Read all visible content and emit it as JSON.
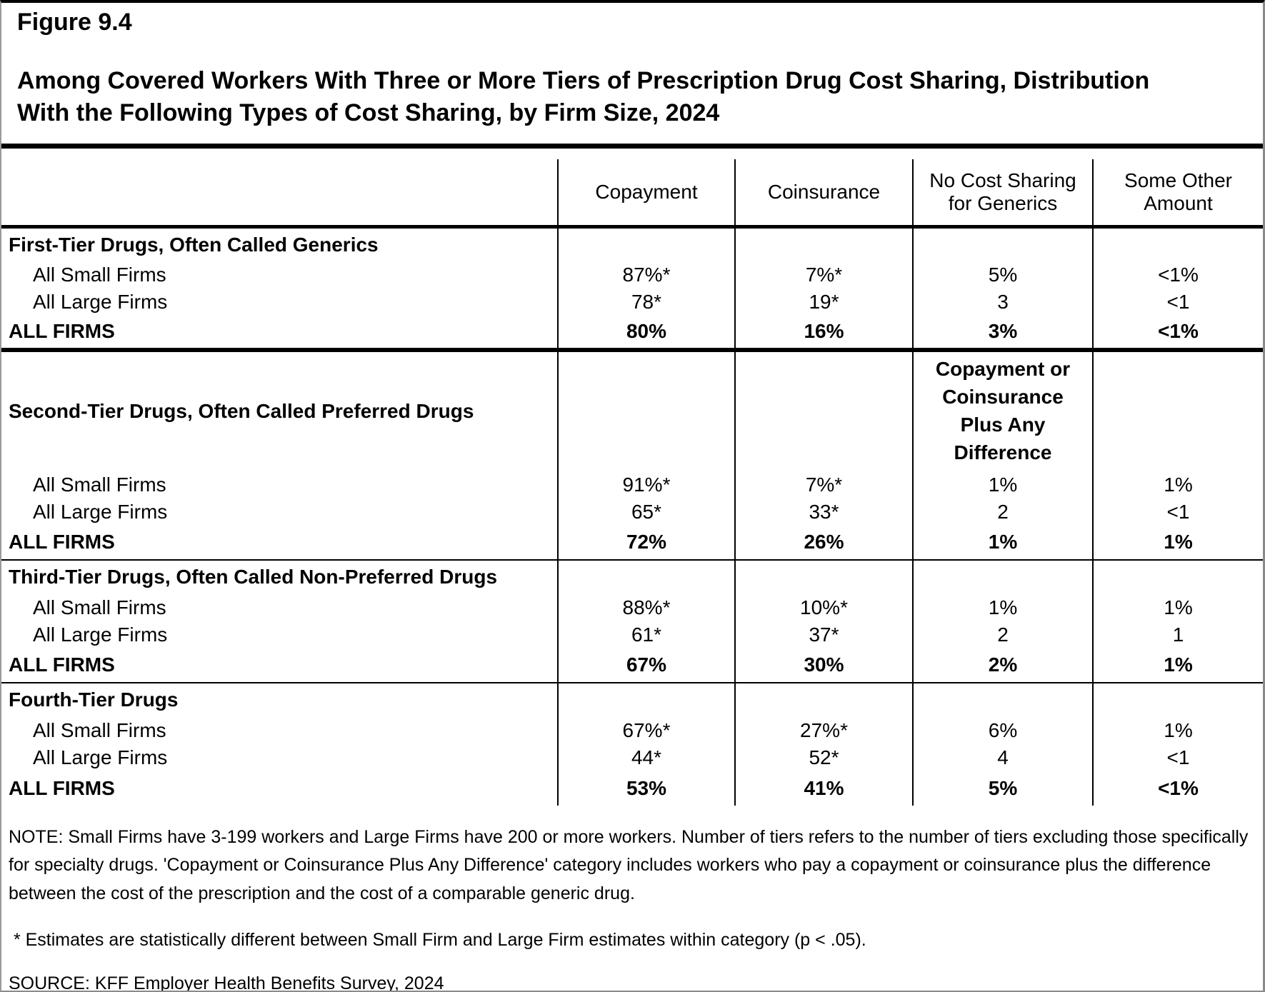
{
  "figure": {
    "label": "Figure 9.4",
    "title": "Among Covered Workers With Three or More Tiers of Prescription Drug Cost Sharing, Distribution\nWith the Following Types of Cost Sharing, by Firm Size, 2024"
  },
  "table": {
    "col_headers": {
      "label": "",
      "copayment": "Copayment",
      "coinsurance": "Coinsurance",
      "no_cost_sharing": "No Cost Sharing\nfor Generics",
      "some_other": "Some Other\nAmount"
    },
    "sections": [
      {
        "title": "First-Tier Drugs, Often Called Generics",
        "rows": [
          {
            "label": "All Small Firms",
            "values": [
              "87%*",
              "7%*",
              "5%",
              "<1%"
            ]
          },
          {
            "label": "All Large Firms",
            "values": [
              "78*",
              "19*",
              "3",
              "<1"
            ]
          },
          {
            "label": "ALL FIRMS",
            "values": [
              "80%",
              "16%",
              "3%",
              "<1%"
            ]
          }
        ]
      },
      {
        "title": "Second-Tier Drugs, Often Called Preferred Drugs",
        "col3_header": "Copayment or\nCoinsurance\nPlus Any\nDifference",
        "rows": [
          {
            "label": "All Small Firms",
            "values": [
              "91%*",
              "7%*",
              "1%",
              "1%"
            ]
          },
          {
            "label": "All Large Firms",
            "values": [
              "65*",
              "33*",
              "2",
              "<1"
            ]
          },
          {
            "label": "ALL FIRMS",
            "values": [
              "72%",
              "26%",
              "1%",
              "1%"
            ]
          }
        ]
      },
      {
        "title": "Third-Tier Drugs, Often Called Non-Preferred Drugs",
        "rows": [
          {
            "label": "All Small Firms",
            "values": [
              "88%*",
              "10%*",
              "1%",
              "1%"
            ]
          },
          {
            "label": "All Large Firms",
            "values": [
              "61*",
              "37*",
              "2",
              "1"
            ]
          },
          {
            "label": "ALL FIRMS",
            "values": [
              "67%",
              "30%",
              "2%",
              "1%"
            ]
          }
        ]
      },
      {
        "title": "Fourth-Tier Drugs",
        "rows": [
          {
            "label": "All Small Firms",
            "values": [
              "67%*",
              "27%*",
              "6%",
              "1%"
            ]
          },
          {
            "label": "All Large Firms",
            "values": [
              "44*",
              "52*",
              "4",
              "<1"
            ]
          },
          {
            "label": "ALL FIRMS",
            "values": [
              "53%",
              "41%",
              "5%",
              "<1%"
            ]
          }
        ]
      }
    ]
  },
  "notes": {
    "note": "NOTE: Small Firms have 3-199 workers and Large Firms have 200 or more workers. Number of tiers refers to the number of tiers excluding those specifically for specialty drugs. 'Copayment or Coinsurance Plus Any Difference' category includes workers who pay a copayment or coinsurance plus the difference between the cost of the prescription and the cost of a comparable generic drug.",
    "asterisk": " * Estimates are statistically different between Small Firm and Large Firm estimates within category (p < .05).",
    "source": "SOURCE: KFF Employer Health Benefits Survey, 2024"
  },
  "colors": {
    "text": "#000000",
    "background": "#ffffff",
    "rule": "#000000",
    "outer_border": "#8a8a8a"
  }
}
